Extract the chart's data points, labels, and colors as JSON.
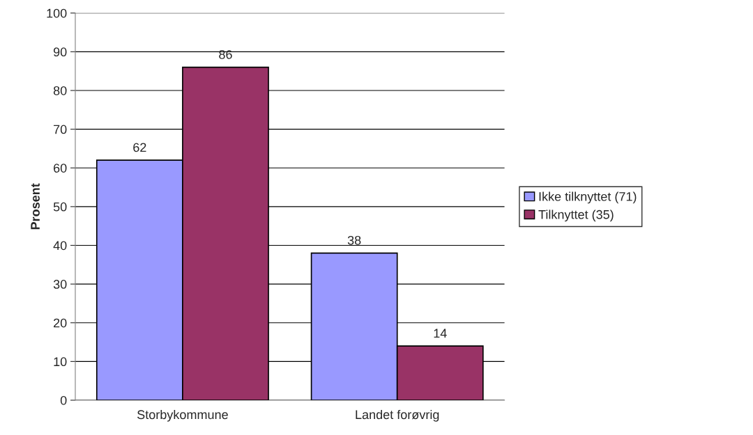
{
  "chart_data": {
    "type": "bar",
    "ylabel": "Prosent",
    "categories": [
      "Storbykommune",
      "Landet forøvrig"
    ],
    "series": [
      {
        "name": "Ikke tilknyttet (71)",
        "color": "#9999ff",
        "values": [
          62,
          38
        ]
      },
      {
        "name": "Tilknyttet (35)",
        "color": "#993366",
        "values": [
          86,
          14
        ]
      }
    ],
    "ylim": [
      0,
      100
    ],
    "yticks": [
      0,
      10,
      20,
      30,
      40,
      50,
      60,
      70,
      80,
      90,
      100
    ],
    "grid": "y",
    "legend": "right",
    "data_labels": true
  }
}
